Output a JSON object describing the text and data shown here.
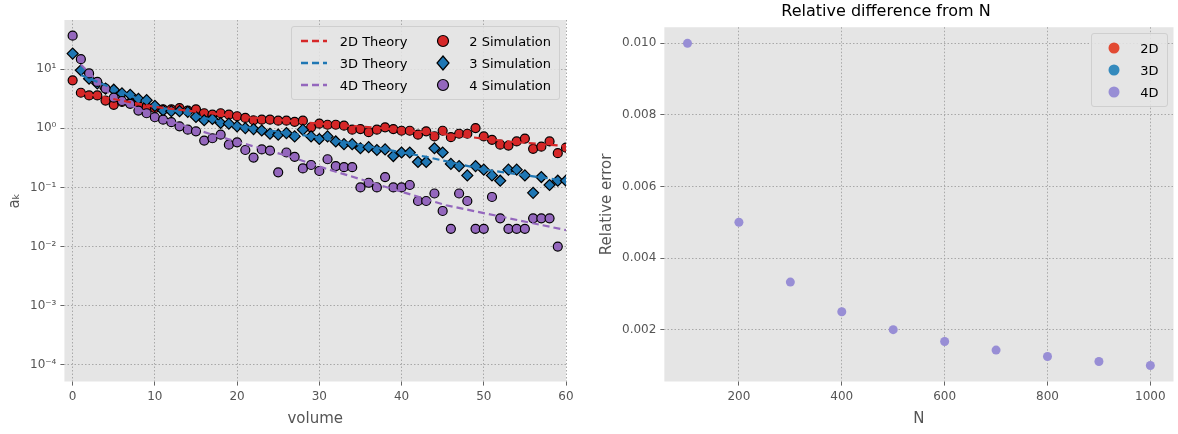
{
  "chart_data": [
    {
      "type": "scatter",
      "xlabel": "volume",
      "ylabel": "aₖ",
      "log": "y",
      "grid": true,
      "legend": "top right",
      "x": [
        0,
        1,
        2,
        3,
        4,
        5,
        6,
        7,
        8,
        9,
        10,
        11,
        12,
        13,
        14,
        15,
        16,
        17,
        18,
        19,
        20,
        21,
        22,
        23,
        24,
        25,
        26,
        27,
        28,
        29,
        30,
        31,
        32,
        33,
        34,
        35,
        36,
        37,
        38,
        39,
        40,
        41,
        42,
        43,
        44,
        45,
        46,
        47,
        48,
        49,
        50,
        51,
        52,
        53,
        54,
        55,
        56,
        57,
        58,
        59,
        60
      ],
      "xlim": [
        -1,
        60
      ],
      "xticks": [
        0,
        10,
        20,
        30,
        40,
        50,
        60
      ],
      "ylim": [
        5.2e-05,
        68
      ],
      "yticks": [
        {
          "value": 0.0001,
          "label": "10⁻⁴"
        },
        {
          "value": 0.001,
          "label": "10⁻³"
        },
        {
          "value": 0.01,
          "label": "10⁻²"
        },
        {
          "value": 0.1,
          "label": "10⁻¹"
        },
        {
          "value": 1,
          "label": "10⁰"
        },
        {
          "value": 10,
          "label": "10¹"
        }
      ],
      "series": [
        {
          "name": "2D Theory",
          "type": "line",
          "color": "#d62728",
          "line_style": "dashed",
          "marker": "none",
          "x": [
            1,
            10,
            20,
            30,
            40,
            48,
            53,
            60
          ],
          "values": [
            4.0,
            2.3,
            1.6,
            1.2,
            0.95,
            0.72,
            0.6,
            0.5
          ]
        },
        {
          "name": "3D Theory",
          "type": "line",
          "color": "#1f77b4",
          "line_style": "dashed",
          "marker": "none",
          "x": [
            1,
            10,
            20,
            30,
            43,
            50,
            60
          ],
          "values": [
            8,
            2.4,
            1.1,
            0.7,
            0.33,
            0.2,
            0.13
          ]
        },
        {
          "name": "4D Theory",
          "type": "line",
          "color": "#9467bd",
          "line_style": "dashed",
          "marker": "none",
          "x": [
            1,
            5,
            10,
            17,
            26.5,
            30.7,
            45.4,
            60
          ],
          "values": [
            12,
            3.3,
            1.6,
            0.78,
            0.33,
            0.21,
            0.05,
            0.019
          ]
        },
        {
          "name": "2 Simulation",
          "color": "#d62728",
          "marker": "circle",
          "values": [
            6.5,
            4.0,
            3.6,
            3.6,
            2.95,
            2.5,
            2.8,
            2.7,
            2.4,
            2.3,
            2.2,
            2.1,
            2.1,
            2.2,
            2.0,
            2.1,
            1.8,
            1.7,
            1.8,
            1.7,
            1.6,
            1.5,
            1.37,
            1.4,
            1.4,
            1.35,
            1.35,
            1.29,
            1.35,
            1.04,
            1.2,
            1.15,
            1.15,
            1.11,
            0.95,
            0.97,
            0.86,
            0.95,
            1.04,
            0.97,
            0.91,
            0.91,
            0.78,
            0.89,
            0.73,
            0.91,
            0.71,
            0.81,
            0.81,
            1.01,
            0.73,
            0.64,
            0.53,
            0.51,
            0.6,
            0.67,
            0.45,
            0.49,
            0.6,
            0.38,
            0.47
          ]
        },
        {
          "name": "3 Simulation",
          "color": "#1f77b4",
          "marker": "diamond",
          "values": [
            18.4,
            9.6,
            6.9,
            5.75,
            4.7,
            4.5,
            3.9,
            3.7,
            3.15,
            3.0,
            2.4,
            2.0,
            1.95,
            1.95,
            1.9,
            1.56,
            1.37,
            1.44,
            1.23,
            1.2,
            1.08,
            1.01,
            0.97,
            0.92,
            0.81,
            0.78,
            0.83,
            0.73,
            0.95,
            0.73,
            0.66,
            0.73,
            0.6,
            0.54,
            0.54,
            0.46,
            0.48,
            0.43,
            0.44,
            0.34,
            0.39,
            0.39,
            0.27,
            0.27,
            0.46,
            0.39,
            0.25,
            0.23,
            0.16,
            0.23,
            0.2,
            0.16,
            0.13,
            0.2,
            0.2,
            0.16,
            0.081,
            0.15,
            0.11,
            0.13,
            0.13
          ]
        },
        {
          "name": "4 Simulation",
          "color": "#9467bd",
          "values": [
            36.9,
            14.8,
            8.5,
            6.1,
            4.7,
            3.3,
            2.9,
            2.6,
            2.0,
            1.8,
            1.54,
            1.4,
            1.27,
            1.08,
            0.95,
            0.89,
            0.62,
            0.68,
            0.78,
            0.53,
            0.58,
            0.43,
            0.32,
            0.44,
            0.42,
            0.18,
            0.39,
            0.33,
            0.21,
            0.24,
            0.19,
            0.3,
            0.23,
            0.22,
            0.22,
            0.1,
            0.12,
            0.1,
            0.15,
            0.1,
            0.1,
            0.11,
            0.059,
            0.059,
            0.079,
            0.04,
            0.02,
            0.079,
            0.059,
            0.02,
            0.02,
            0.069,
            0.03,
            0.02,
            0.02,
            0.02,
            0.03,
            0.03,
            0.03,
            0.01,
            null
          ]
        }
      ]
    },
    {
      "type": "scatter",
      "title": "Relative difference from N",
      "xlabel": "N",
      "ylabel": "Relative error",
      "grid": true,
      "legend": "top right",
      "marker": "circle",
      "x": [
        100,
        200,
        300,
        400,
        500,
        600,
        700,
        800,
        900,
        1000
      ],
      "xlim": [
        55,
        1045
      ],
      "xticks": [
        200,
        400,
        600,
        800,
        1000
      ],
      "ylim": [
        0.00055,
        0.01045
      ],
      "yticks": [
        {
          "value": 0.002,
          "label": "0.002"
        },
        {
          "value": 0.004,
          "label": "0.004"
        },
        {
          "value": 0.006,
          "label": "0.006"
        },
        {
          "value": 0.008,
          "label": "0.008"
        },
        {
          "value": 0.01,
          "label": "0.010"
        }
      ],
      "series": [
        {
          "name": "2D",
          "color": "#e24a33",
          "values": [
            null,
            null,
            null,
            null,
            null,
            null,
            null,
            null,
            null,
            null
          ]
        },
        {
          "name": "3D",
          "color": "#348abd",
          "values": [
            null,
            null,
            null,
            null,
            null,
            null,
            null,
            null,
            null,
            null
          ]
        },
        {
          "name": "4D",
          "color": "#988ed5",
          "values": [
            0.01,
            0.005,
            0.00333,
            0.0025,
            0.002,
            0.00167,
            0.00143,
            0.00125,
            0.00111,
            0.001
          ]
        }
      ]
    }
  ]
}
